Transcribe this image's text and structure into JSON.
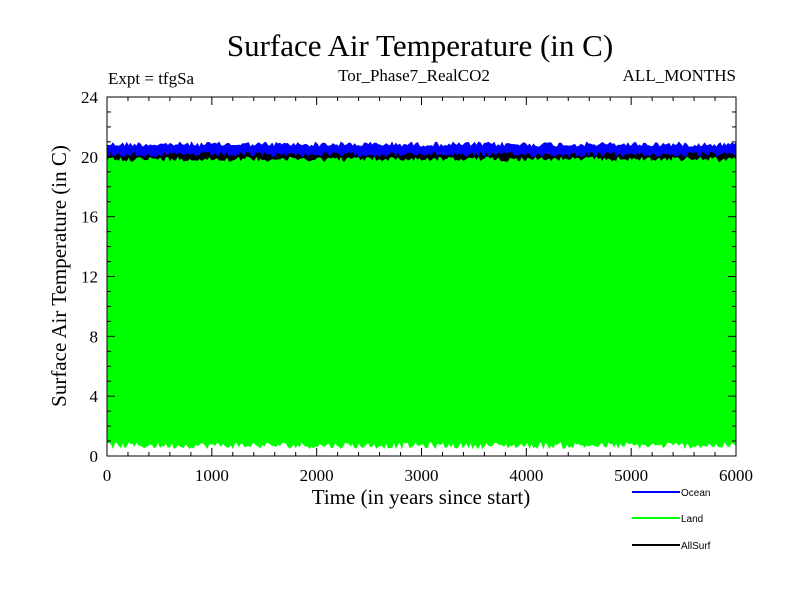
{
  "chart_data": {
    "type": "area",
    "title": "Surface Air Temperature (in C)",
    "subtitle_left": "Expt = tfgSa",
    "subtitle_center": "Tor_Phase7_RealCO2",
    "subtitle_right": "ALL_MONTHS",
    "xlabel": "Time (in years since start)",
    "ylabel": "Surface Air Temperature (in C)",
    "xlim": [
      0,
      6000
    ],
    "ylim": [
      0,
      24
    ],
    "xticks": [
      0,
      1000,
      2000,
      3000,
      4000,
      5000,
      6000
    ],
    "yticks": [
      0,
      4,
      8,
      12,
      16,
      20,
      24
    ],
    "x_minor_step": 200,
    "y_minor_step": 1,
    "grid": false,
    "legend_placement": "below-right",
    "series": [
      {
        "name": "Ocean",
        "color": "#0000ff",
        "min": 19.6,
        "max": 21.0,
        "mean": 20.3,
        "style": "band"
      },
      {
        "name": "Land",
        "color": "#00ff00",
        "min": 0.5,
        "max": 20.0,
        "mean": 10.3,
        "style": "band"
      },
      {
        "name": "AllSurf",
        "color": "#000000",
        "min": 19.6,
        "max": 20.3,
        "mean": 19.9,
        "style": "band"
      }
    ]
  }
}
